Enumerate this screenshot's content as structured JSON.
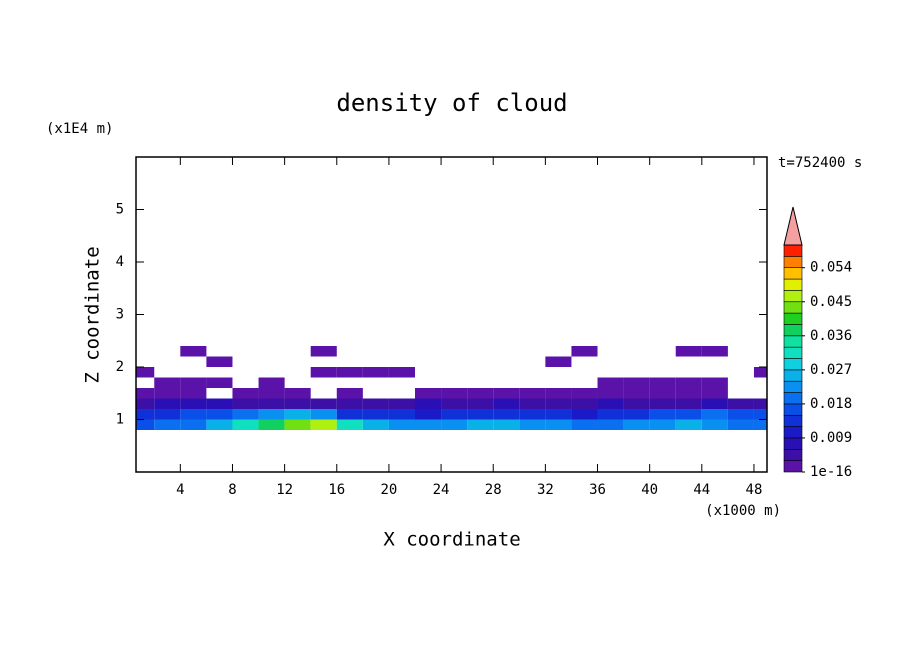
{
  "chart_data": {
    "type": "contour",
    "title": "density of cloud",
    "x_label": "X coordinate",
    "x_unit": "(x1000 m)",
    "y_label": "Z coordinate",
    "y_unit": "(x1E4 m)",
    "annotation": "t=752400 s",
    "xlim": [
      0.6,
      49.0
    ],
    "xticks": [
      4,
      8,
      12,
      16,
      20,
      24,
      28,
      32,
      36,
      40,
      44,
      48
    ],
    "ylim": [
      0,
      6
    ],
    "yticks": [
      1,
      2,
      3,
      4,
      5
    ],
    "x": [
      1,
      3,
      5,
      7,
      9,
      11,
      13,
      15,
      17,
      19,
      21,
      23,
      25,
      27,
      29,
      31,
      33,
      35,
      37,
      39,
      41,
      43,
      45,
      47,
      49
    ],
    "y": [
      0.9,
      1.1,
      1.3,
      1.5,
      1.7,
      1.9,
      2.1,
      2.3
    ],
    "z": [
      [
        0.015,
        0.018,
        0.02,
        0.024,
        0.03,
        0.036,
        0.042,
        0.045,
        0.03,
        0.024,
        0.022,
        0.021,
        0.022,
        0.024,
        0.025,
        0.022,
        0.021,
        0.02,
        0.02,
        0.022,
        0.021,
        0.024,
        0.022,
        0.02,
        0.018
      ],
      [
        0.012,
        0.014,
        0.015,
        0.016,
        0.02,
        0.022,
        0.024,
        0.022,
        0.014,
        0.012,
        0.012,
        0.011,
        0.012,
        0.013,
        0.014,
        0.013,
        0.012,
        0.011,
        0.012,
        0.013,
        0.015,
        0.016,
        0.018,
        0.016,
        0.015
      ],
      [
        0.005,
        0.006,
        0.007,
        0.006,
        0.004,
        0.005,
        0.004,
        0.003,
        0.003,
        0.004,
        0.005,
        0.006,
        0.004,
        0.005,
        0.006,
        0.004,
        0.003,
        0.004,
        0.006,
        0.005,
        0.004,
        0.005,
        0.006,
        0.005,
        0.004
      ],
      [
        0.001,
        0.001,
        0.001,
        null,
        0.001,
        0.001,
        0.001,
        null,
        0.001,
        null,
        null,
        0.001,
        0.001,
        0.001,
        0.001,
        0.001,
        0.001,
        0.001,
        0.001,
        0.001,
        0.001,
        0.001,
        0.001,
        null,
        null
      ],
      [
        null,
        0.001,
        0.001,
        0.001,
        null,
        0.001,
        null,
        null,
        null,
        null,
        null,
        null,
        null,
        null,
        null,
        null,
        null,
        null,
        0.001,
        0.001,
        0.001,
        0.001,
        0.001,
        null,
        null
      ],
      [
        0.001,
        null,
        null,
        null,
        null,
        null,
        null,
        0.001,
        0.001,
        0.001,
        0.001,
        null,
        null,
        null,
        null,
        null,
        null,
        null,
        null,
        null,
        null,
        null,
        null,
        null,
        0.001
      ],
      [
        null,
        null,
        null,
        0.001,
        null,
        null,
        null,
        null,
        null,
        null,
        null,
        null,
        null,
        null,
        null,
        null,
        0.001,
        null,
        null,
        null,
        null,
        null,
        null,
        null,
        null
      ],
      [
        null,
        null,
        0.001,
        null,
        null,
        null,
        null,
        0.001,
        null,
        null,
        null,
        null,
        null,
        null,
        null,
        null,
        null,
        0.001,
        null,
        null,
        null,
        0.001,
        0.001,
        null,
        null
      ]
    ],
    "clim": [
      0,
      0.06
    ],
    "cticks": [
      {
        "value": 0,
        "label": "1e-16"
      },
      0.009,
      0.018,
      0.027,
      0.036,
      0.045,
      0.054
    ],
    "colors": [
      "#5b12a8",
      "#3c0fa6",
      "#2a10b4",
      "#1a1ac8",
      "#1030d8",
      "#0a50e8",
      "#0a70f0",
      "#0a90f0",
      "#0ab0e8",
      "#10d0e0",
      "#10e0c0",
      "#10e0a0",
      "#10d060",
      "#20d020",
      "#70e010",
      "#b0f010",
      "#e0f000",
      "#ffc000",
      "#ff8000",
      "#ff2000"
    ],
    "extend_color": "#f4a0a0"
  }
}
